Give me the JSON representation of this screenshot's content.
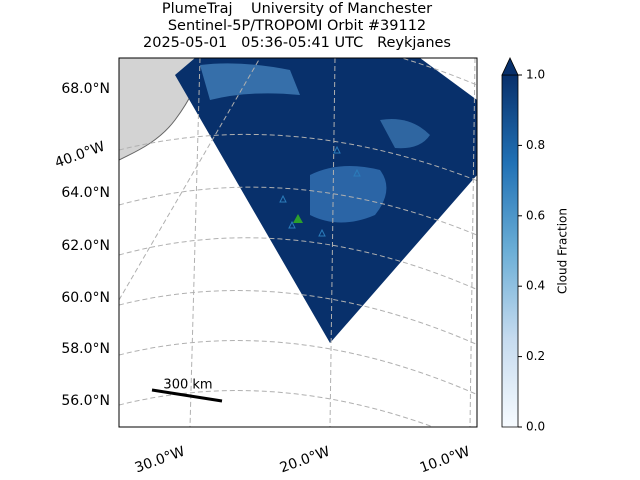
{
  "title": [
    "PlumeTraj    University of Manchester",
    "Sentinel-5P/TROPOMI Orbit #39112",
    "2025-05-01   05:36-05:41 UTC   Reykjanes"
  ],
  "lat_labels": [
    "68.0°N",
    "64.0°N",
    "62.0°N",
    "60.0°N",
    "58.0°N",
    "56.0°N"
  ],
  "lon_labels": [
    "40.0°W",
    "30.0°W",
    "20.0°W",
    "10.0°W"
  ],
  "scale_bar": "300 km",
  "colorbar": {
    "label": "Cloud Fraction",
    "lim": [
      0,
      1
    ],
    "ticks": [
      {
        "value": 0,
        "label": "0.0"
      },
      {
        "value": 0.2,
        "label": "0.2"
      },
      {
        "value": 0.4,
        "label": "0.4"
      },
      {
        "value": 0.6,
        "label": "0.6"
      },
      {
        "value": 0.8,
        "label": "0.8"
      },
      {
        "value": 1,
        "label": "1.0"
      }
    ]
  }
}
